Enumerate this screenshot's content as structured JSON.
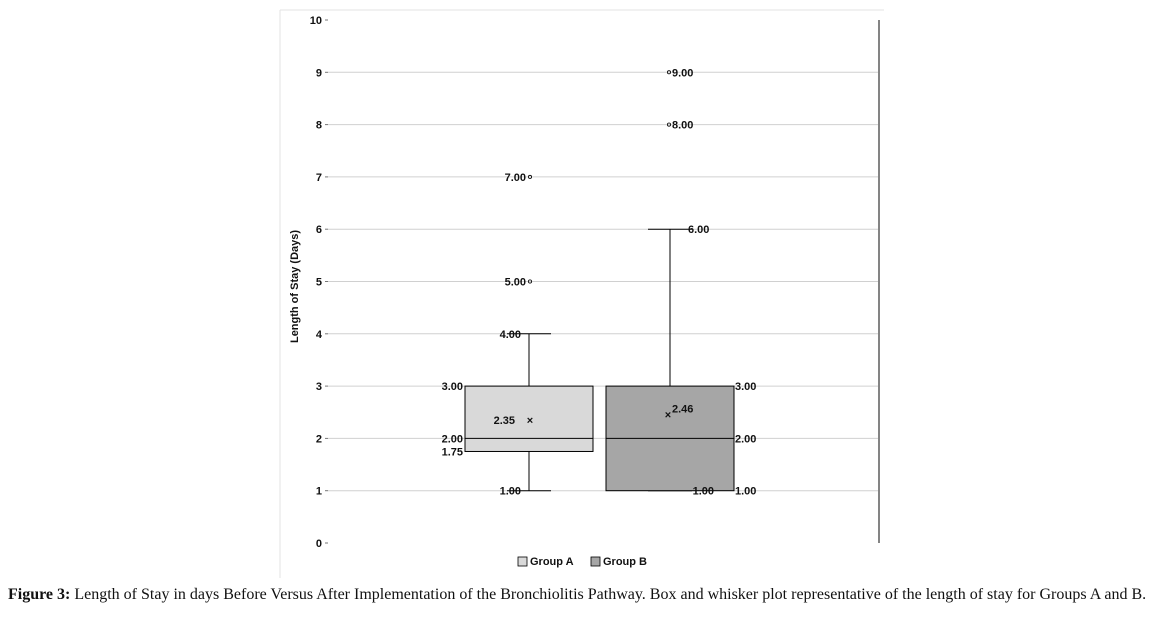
{
  "chart_data": {
    "type": "box",
    "ylabel": "Length of Stay (Days)",
    "xlabel": "",
    "ylim": [
      0,
      10
    ],
    "yticks": [
      0,
      1,
      2,
      3,
      4,
      5,
      6,
      7,
      8,
      9,
      10
    ],
    "grid": true,
    "legend_position": "bottom",
    "series": [
      {
        "name": "Group A",
        "color": "#d9d9d9",
        "min": 1.0,
        "q1": 1.75,
        "median": 2.0,
        "q3": 3.0,
        "max": 4.0,
        "mean": 2.35,
        "outliers": [
          5.0,
          7.0
        ],
        "labels": {
          "min": "1.00",
          "q1": "1.75",
          "median": "2.00",
          "q3": "3.00",
          "max": "4.00",
          "mean": "2.35",
          "outliers": [
            "5.00",
            "7.00"
          ]
        }
      },
      {
        "name": "Group B",
        "color": "#a6a6a6",
        "min": 1.0,
        "q1": 1.0,
        "median": 2.0,
        "q3": 3.0,
        "max": 6.0,
        "mean": 2.46,
        "outliers": [
          8.0,
          9.0
        ],
        "labels": {
          "min": "1.00",
          "q1": "1.00",
          "median": "2.00",
          "q3": "3.00",
          "max": "6.00",
          "mean": "2.46",
          "outliers": [
            "8.00",
            "9.00"
          ]
        }
      }
    ]
  },
  "caption": {
    "label": "Figure 3:",
    "text": " Length of Stay in days Before Versus After Implementation of the Bronchiolitis Pathway. Box and whisker plot representative of the length of stay for Groups A and B."
  }
}
